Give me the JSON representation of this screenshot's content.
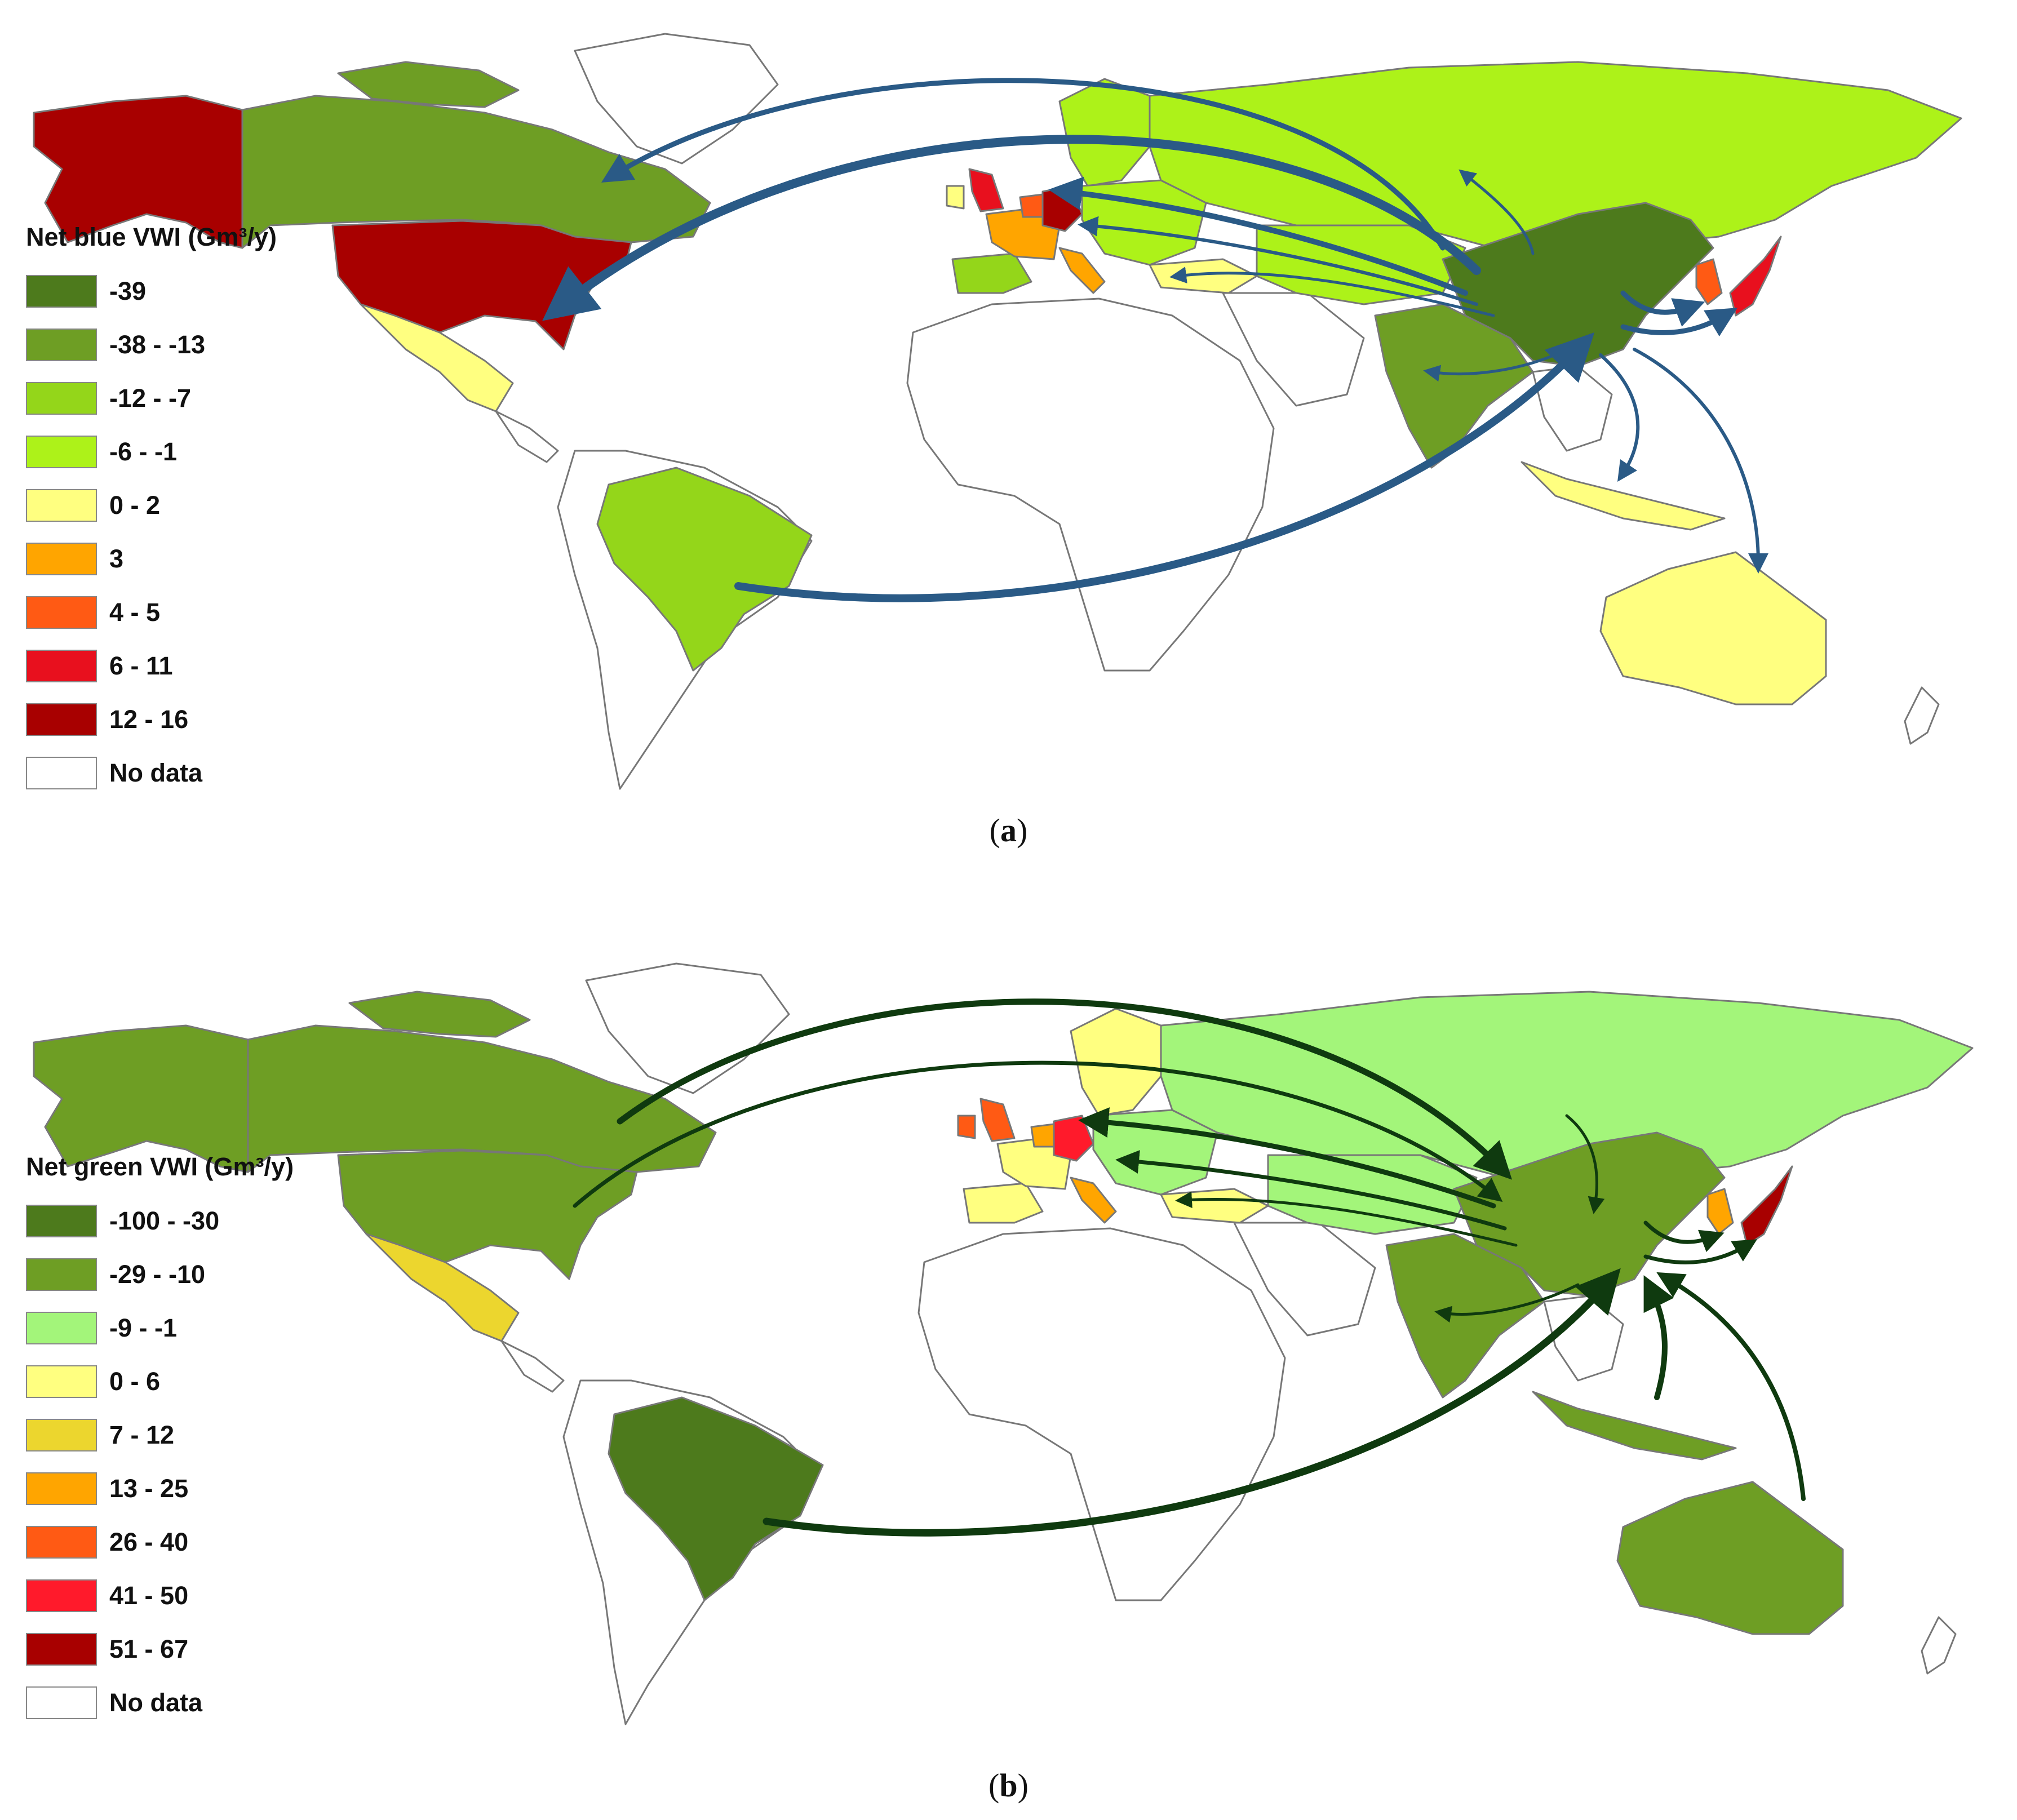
{
  "panel_a": {
    "legend_title": "Net blue VWI (Gm³/y)",
    "legend": [
      {
        "label": "-39",
        "color": "#4d7a1c"
      },
      {
        "label": "-38 - -13",
        "color": "#6e9e24"
      },
      {
        "label": "-12 - -7",
        "color": "#94d61a"
      },
      {
        "label": "-6 - -1",
        "color": "#adf219"
      },
      {
        "label": "0 - 2",
        "color": "#ffff80"
      },
      {
        "label": "3",
        "color": "#ffa500"
      },
      {
        "label": "4 - 5",
        "color": "#ff5a14"
      },
      {
        "label": "6 - 11",
        "color": "#e8101e"
      },
      {
        "label": "12 - 16",
        "color": "#a80000"
      },
      {
        "label": "No data",
        "color": "#ffffff"
      }
    ],
    "arrow_color": "#2a5a86",
    "caption_letter": "a"
  },
  "panel_b": {
    "legend_title": "Net green VWI (Gm³/y)",
    "legend": [
      {
        "label": "-100 - -30",
        "color": "#4d7a1c"
      },
      {
        "label": "-29 - -10",
        "color": "#6e9e24"
      },
      {
        "label": "-9 - -1",
        "color": "#a3f57a"
      },
      {
        "label": "0 - 6",
        "color": "#ffff80"
      },
      {
        "label": "7 - 12",
        "color": "#ecd62e"
      },
      {
        "label": "13 - 25",
        "color": "#ffa500"
      },
      {
        "label": "26 - 40",
        "color": "#ff5a14"
      },
      {
        "label": "41 - 50",
        "color": "#ff1a2b"
      },
      {
        "label": "51 - 67",
        "color": "#a80000"
      },
      {
        "label": "No data",
        "color": "#ffffff"
      }
    ],
    "arrow_color": "#0f3a0f",
    "caption_letter": "b"
  }
}
